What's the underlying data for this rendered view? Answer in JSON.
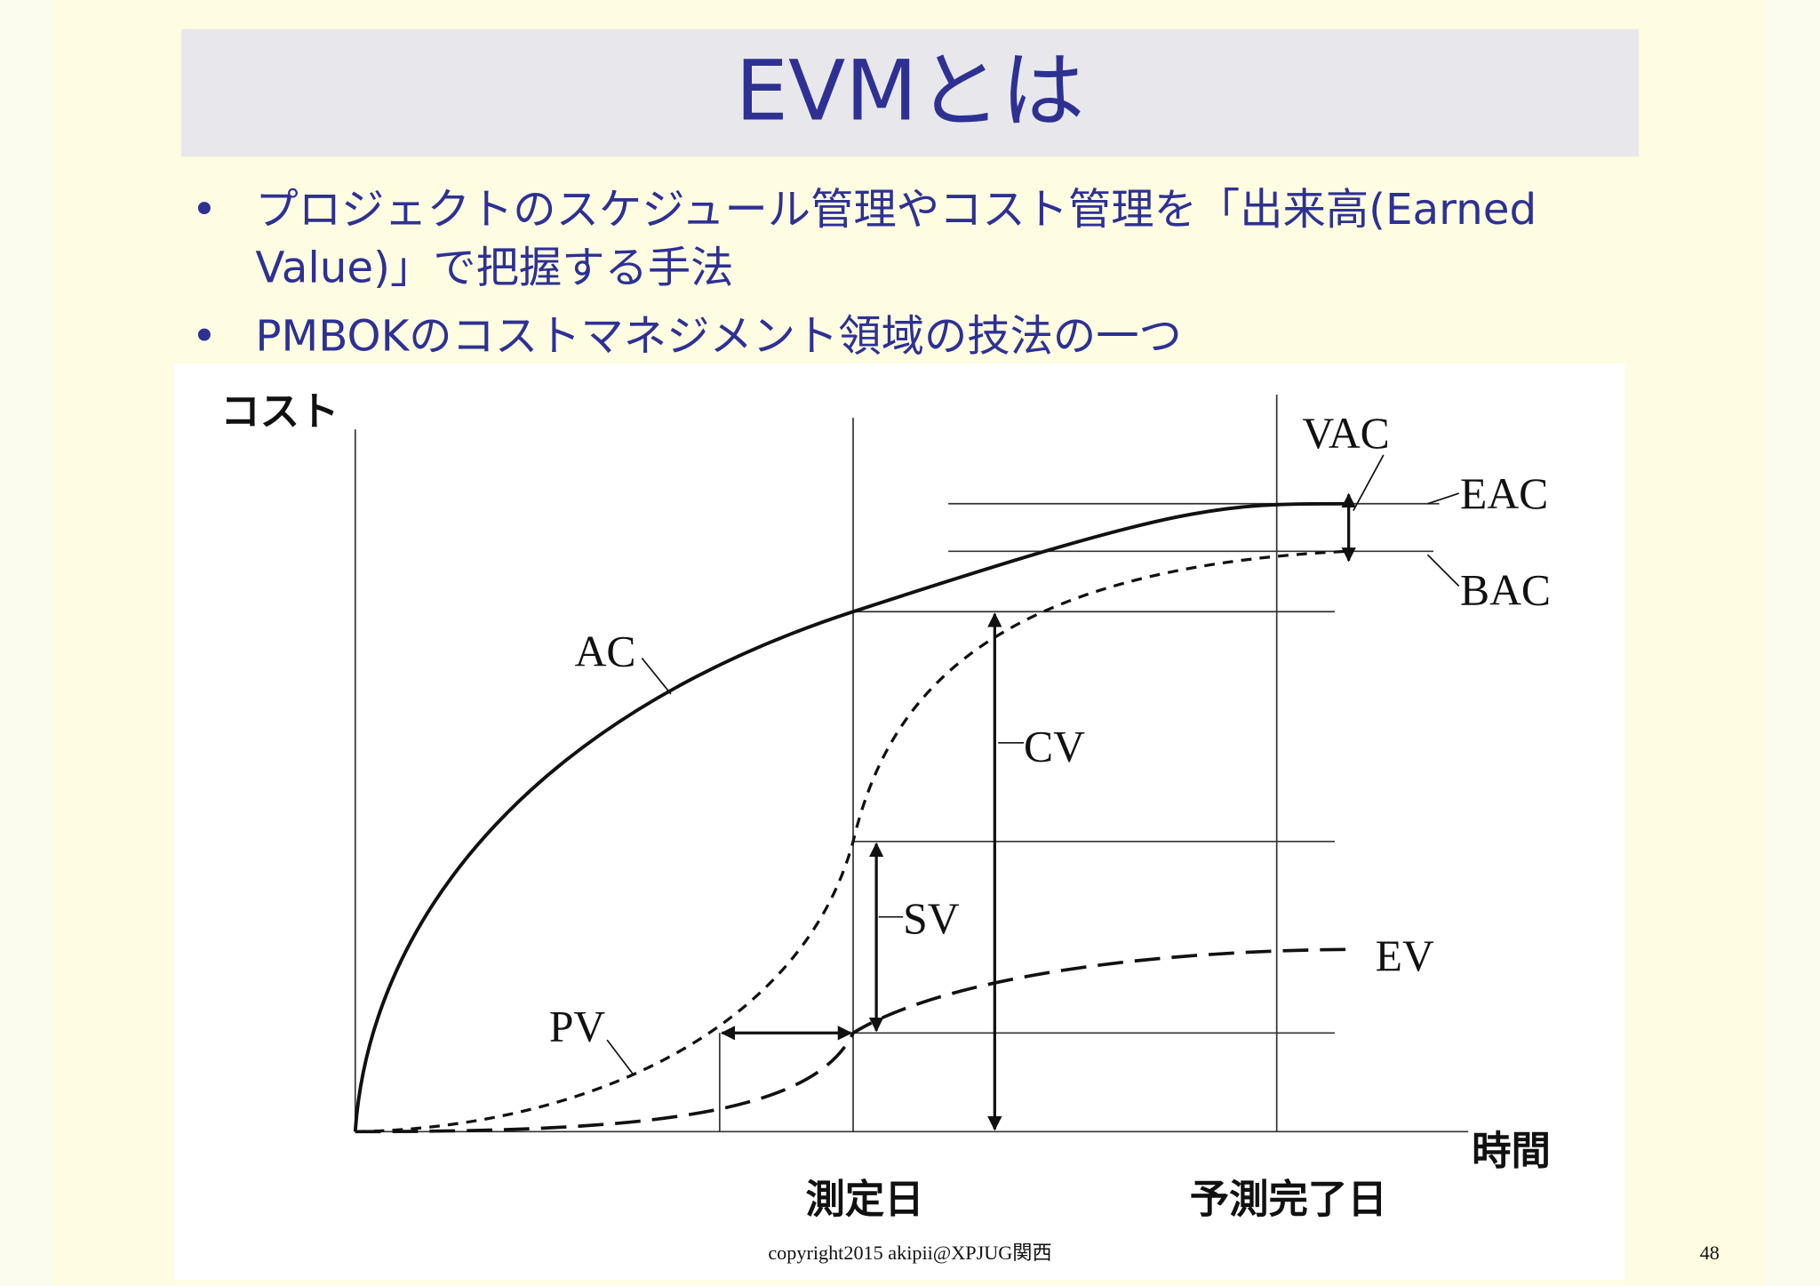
{
  "header": {
    "title": "EVMとは"
  },
  "bullets": [
    {
      "lines": [
        "プロジェクトのスケジュール管理やコスト管理を「出来高(Earned",
        "Value)」で把握する手法"
      ]
    },
    {
      "lines": [
        "PMBOKのコストマネジメント領域の技法の一つ"
      ]
    }
  ],
  "bullet_symbol": "•",
  "diagram": {
    "y_axis_label": "コスト",
    "x_axis_label": "時間",
    "x_markers": [
      "測定日",
      "予測完了日"
    ],
    "curves": [
      "AC",
      "PV",
      "EV"
    ],
    "measures": [
      "VAC",
      "EAC",
      "BAC",
      "CV",
      "SV"
    ]
  },
  "footer": {
    "copyright": "copyright2015 akipii@XPJUG関西",
    "page": "48"
  }
}
